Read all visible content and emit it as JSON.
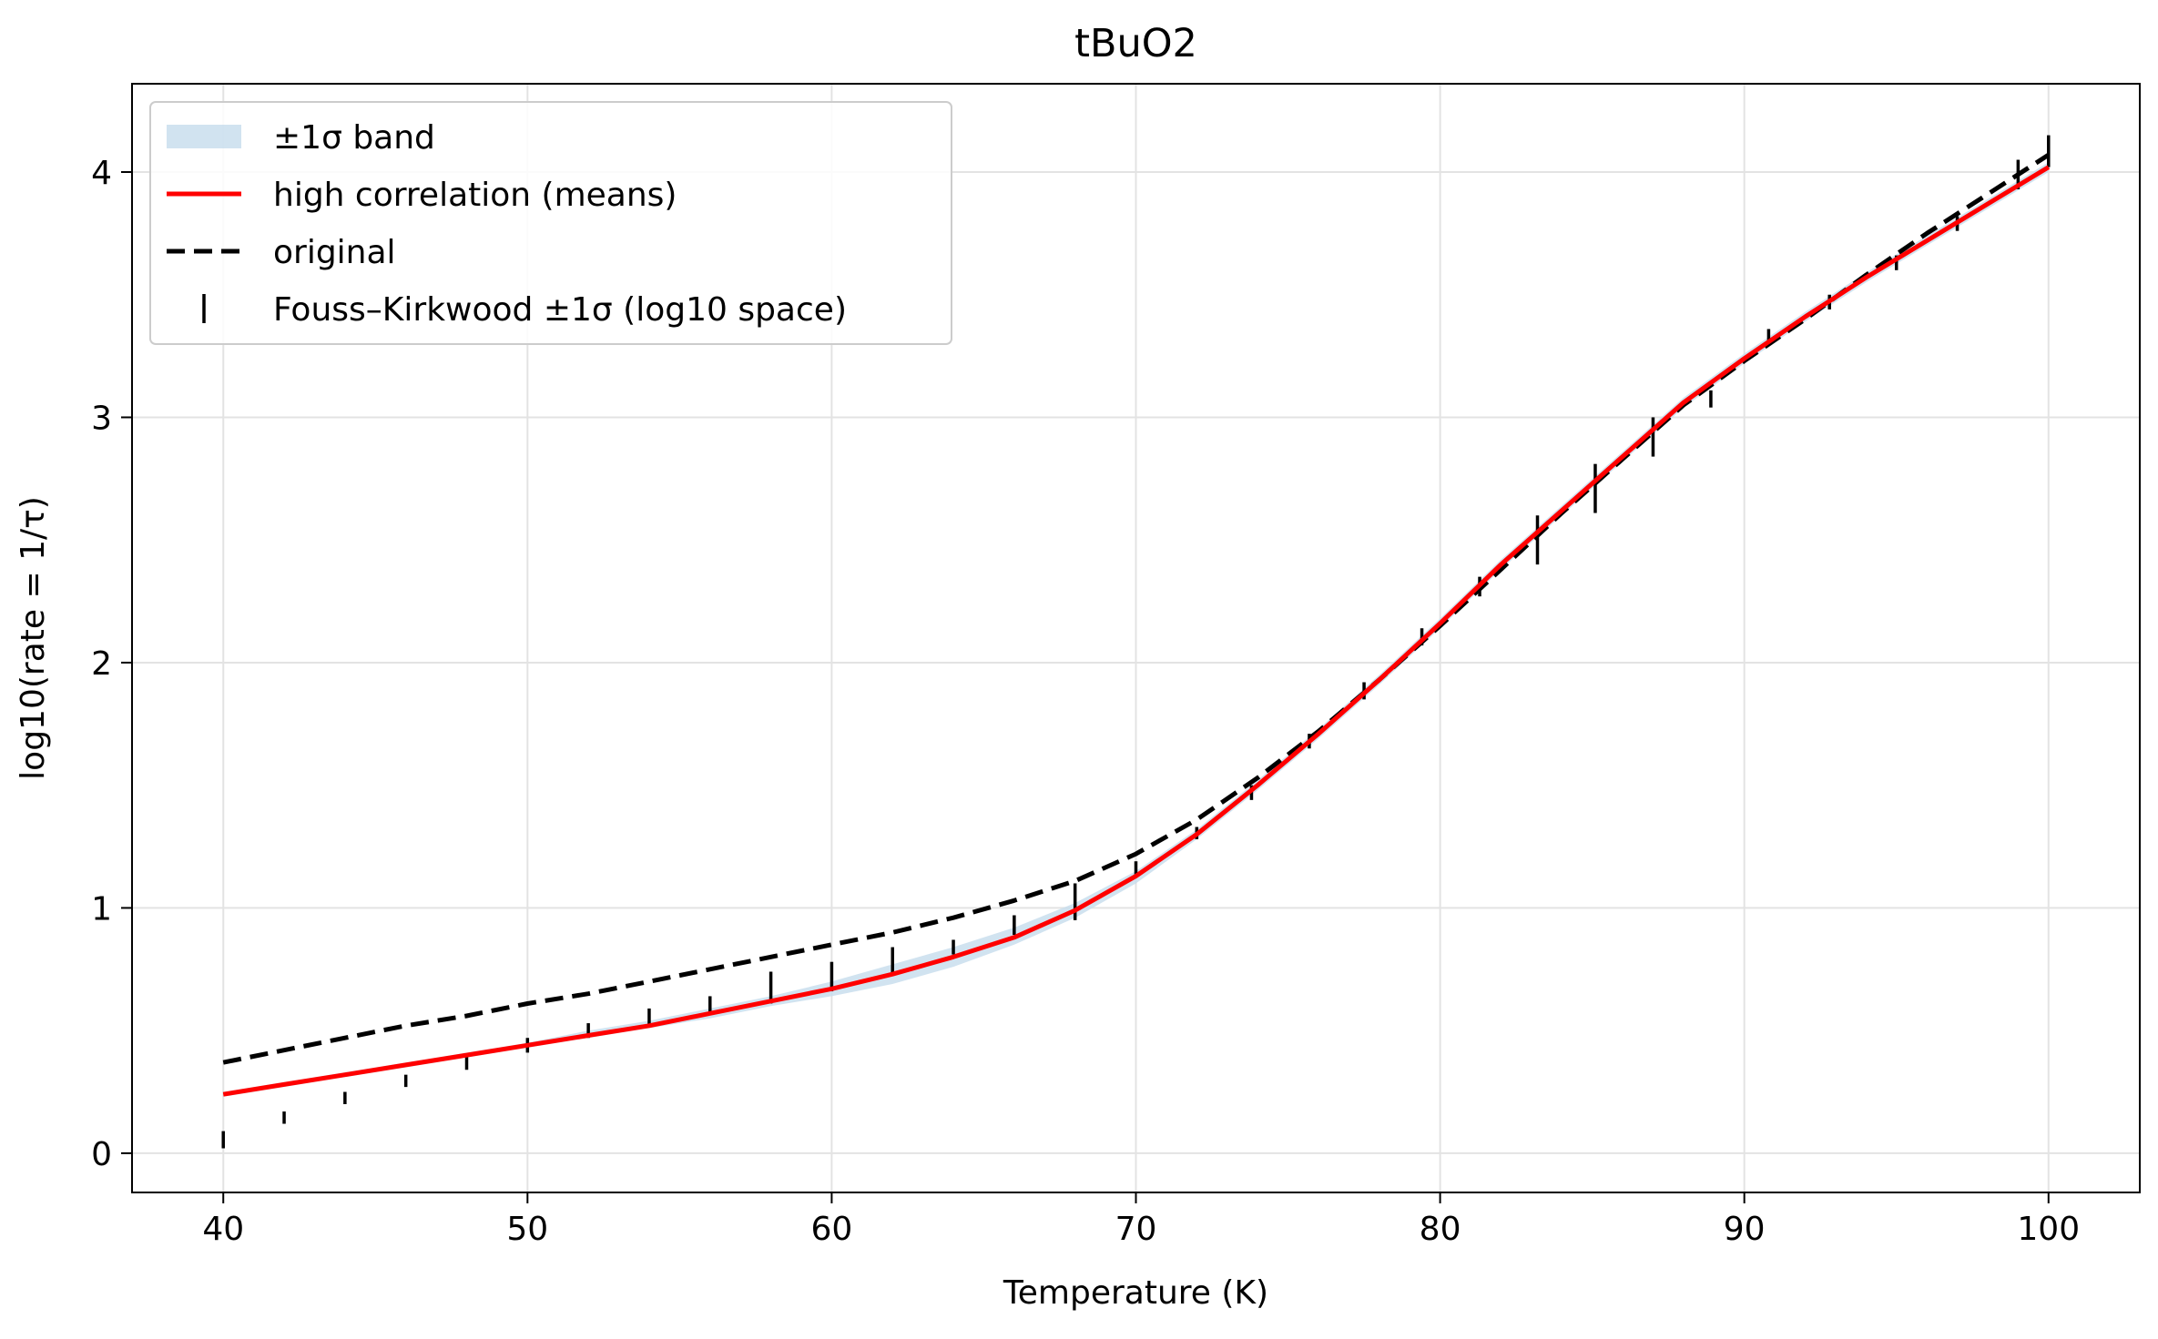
{
  "chart_data": {
    "type": "line",
    "title": "tBuO2",
    "xlabel": "Temperature (K)",
    "ylabel": "log10(rate = 1/τ)",
    "xlim": [
      37,
      103
    ],
    "ylim": [
      -0.16,
      4.36
    ],
    "grid": true,
    "legend_position": "top-left",
    "x_ticks": [
      40,
      50,
      60,
      70,
      80,
      90,
      100
    ],
    "x_tick_labels": [
      "40",
      "50",
      "60",
      "70",
      "80",
      "90",
      "100"
    ],
    "y_ticks": [
      0,
      1,
      2,
      3,
      4
    ],
    "y_tick_labels": [
      "0",
      "1",
      "2",
      "3",
      "4"
    ],
    "legend": [
      {
        "label": "±1σ band",
        "kind": "band",
        "color": "#c6dcec"
      },
      {
        "label": "high correlation (means)",
        "kind": "line",
        "color": "#ff0000"
      },
      {
        "label": "original",
        "kind": "dashed",
        "color": "#000000"
      },
      {
        "label": "Fouss–Kirkwood ±1σ (log10 space)",
        "kind": "errorbar",
        "color": "#000000"
      }
    ],
    "series": [
      {
        "name": "high correlation (means)",
        "color": "#ff0000",
        "x": [
          40,
          42,
          44,
          46,
          48,
          50,
          52,
          54,
          56,
          58,
          60,
          62,
          64,
          66,
          68,
          70,
          72,
          74,
          76,
          78,
          80,
          82,
          84,
          86,
          88,
          90,
          92,
          94,
          96,
          98,
          100
        ],
        "y": [
          0.24,
          0.28,
          0.32,
          0.36,
          0.4,
          0.44,
          0.48,
          0.52,
          0.57,
          0.62,
          0.67,
          0.73,
          0.8,
          0.88,
          0.99,
          1.13,
          1.3,
          1.5,
          1.71,
          1.93,
          2.16,
          2.4,
          2.62,
          2.84,
          3.06,
          3.24,
          3.41,
          3.57,
          3.72,
          3.87,
          4.02
        ]
      },
      {
        "name": "original",
        "color": "#000000",
        "x": [
          40,
          42,
          44,
          46,
          48,
          50,
          52,
          54,
          56,
          58,
          60,
          62,
          64,
          66,
          68,
          70,
          72,
          74,
          76,
          78,
          80,
          82,
          84,
          86,
          88,
          90,
          92,
          94,
          96,
          98,
          100
        ],
        "y": [
          0.37,
          0.42,
          0.47,
          0.52,
          0.56,
          0.61,
          0.65,
          0.7,
          0.75,
          0.8,
          0.85,
          0.9,
          0.96,
          1.03,
          1.11,
          1.22,
          1.36,
          1.53,
          1.72,
          1.93,
          2.15,
          2.38,
          2.61,
          2.83,
          3.05,
          3.23,
          3.4,
          3.58,
          3.75,
          3.91,
          4.07
        ]
      }
    ],
    "band": {
      "name": "±1σ band",
      "color": "#c6dcec",
      "x": [
        40,
        42,
        44,
        46,
        48,
        50,
        52,
        54,
        56,
        58,
        60,
        62,
        64,
        66,
        68,
        70,
        72,
        74,
        76,
        78,
        80,
        82,
        84,
        86,
        88,
        90,
        92,
        94,
        96,
        98,
        100
      ],
      "lower": [
        0.23,
        0.27,
        0.31,
        0.35,
        0.39,
        0.43,
        0.47,
        0.51,
        0.55,
        0.6,
        0.64,
        0.69,
        0.76,
        0.85,
        0.96,
        1.1,
        1.28,
        1.48,
        1.69,
        1.91,
        2.14,
        2.38,
        2.6,
        2.82,
        3.04,
        3.22,
        3.39,
        3.55,
        3.7,
        3.85,
        4.0
      ],
      "upper": [
        0.25,
        0.29,
        0.33,
        0.37,
        0.41,
        0.45,
        0.5,
        0.54,
        0.59,
        0.64,
        0.7,
        0.77,
        0.84,
        0.92,
        1.02,
        1.15,
        1.32,
        1.52,
        1.73,
        1.95,
        2.18,
        2.42,
        2.64,
        2.86,
        3.08,
        3.26,
        3.43,
        3.59,
        3.74,
        3.89,
        4.04
      ]
    },
    "errorbars": {
      "name": "Fouss–Kirkwood ±1σ (log10 space)",
      "color": "#000000",
      "points": [
        {
          "x": 40,
          "low": 0.02,
          "high": 0.09
        },
        {
          "x": 42,
          "low": 0.12,
          "high": 0.17
        },
        {
          "x": 44,
          "low": 0.2,
          "high": 0.25
        },
        {
          "x": 46,
          "low": 0.27,
          "high": 0.32
        },
        {
          "x": 48,
          "low": 0.34,
          "high": 0.4
        },
        {
          "x": 50,
          "low": 0.41,
          "high": 0.47
        },
        {
          "x": 52,
          "low": 0.47,
          "high": 0.53
        },
        {
          "x": 54,
          "low": 0.52,
          "high": 0.59
        },
        {
          "x": 56,
          "low": 0.57,
          "high": 0.64
        },
        {
          "x": 58,
          "low": 0.61,
          "high": 0.74
        },
        {
          "x": 60,
          "low": 0.66,
          "high": 0.78
        },
        {
          "x": 62,
          "low": 0.73,
          "high": 0.84
        },
        {
          "x": 64,
          "low": 0.81,
          "high": 0.87
        },
        {
          "x": 66,
          "low": 0.89,
          "high": 0.97
        },
        {
          "x": 68,
          "low": 0.95,
          "high": 1.1
        },
        {
          "x": 70,
          "low": 1.13,
          "high": 1.19
        },
        {
          "x": 72,
          "low": 1.28,
          "high": 1.33
        },
        {
          "x": 73.8,
          "low": 1.44,
          "high": 1.5
        },
        {
          "x": 75.7,
          "low": 1.65,
          "high": 1.71
        },
        {
          "x": 77.5,
          "low": 1.85,
          "high": 1.92
        },
        {
          "x": 79.4,
          "low": 2.07,
          "high": 2.14
        },
        {
          "x": 81.3,
          "low": 2.27,
          "high": 2.35
        },
        {
          "x": 83.2,
          "low": 2.4,
          "high": 2.6
        },
        {
          "x": 85.1,
          "low": 2.61,
          "high": 2.81
        },
        {
          "x": 87,
          "low": 2.84,
          "high": 3.0
        },
        {
          "x": 88.9,
          "low": 3.04,
          "high": 3.11
        },
        {
          "x": 90.8,
          "low": 3.3,
          "high": 3.36
        },
        {
          "x": 92.8,
          "low": 3.44,
          "high": 3.5
        },
        {
          "x": 95,
          "low": 3.6,
          "high": 3.66
        },
        {
          "x": 97,
          "low": 3.76,
          "high": 3.82
        },
        {
          "x": 99,
          "low": 3.93,
          "high": 4.05
        },
        {
          "x": 100,
          "low": 4.02,
          "high": 4.15
        }
      ]
    }
  }
}
